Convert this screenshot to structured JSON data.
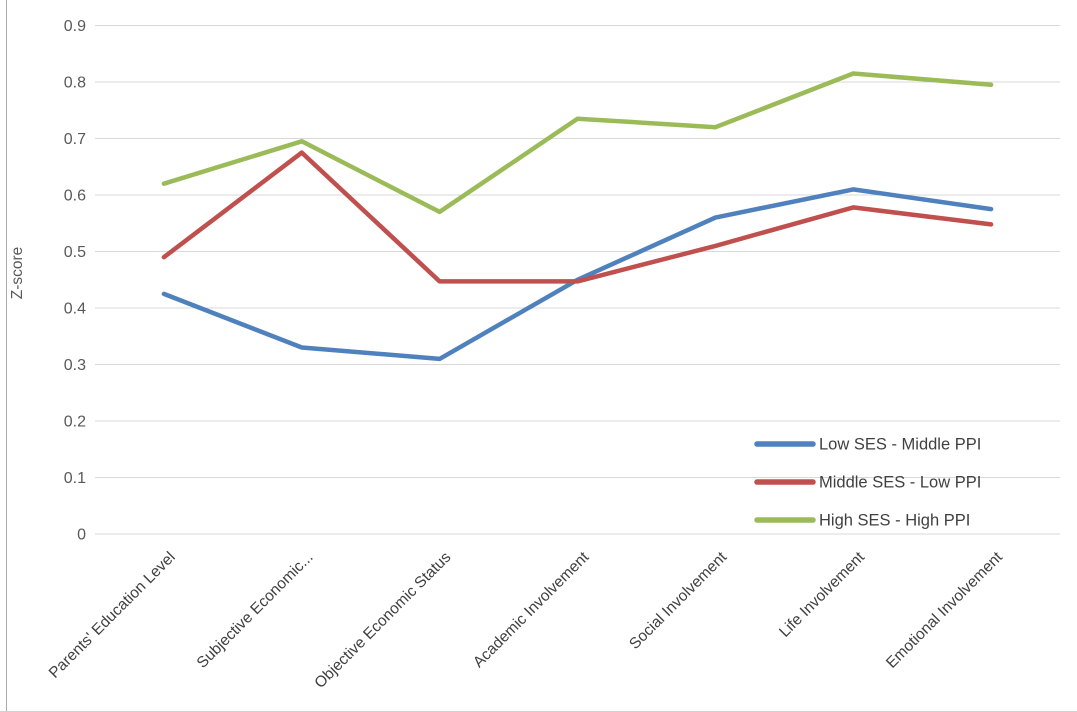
{
  "chart_data": {
    "type": "line",
    "title": "",
    "xlabel": "",
    "ylabel": "Z-score",
    "ylim": [
      0,
      0.9
    ],
    "ytick_labels": [
      "0",
      "0.1",
      "0.2",
      "0.3",
      "0.4",
      "0.5",
      "0.6",
      "0.7",
      "0.8",
      "0.9"
    ],
    "ytick_values": [
      0,
      0.1,
      0.2,
      0.3,
      0.4,
      0.5,
      0.6,
      0.7,
      0.8,
      0.9
    ],
    "grid": true,
    "gridline_color": "#d9d9d9",
    "axis_text_color": "#595959",
    "label_text_color": "#404040",
    "legend_position": "inside-right-middle",
    "categories": [
      "Parents' Education Level",
      "Subjective Economic...",
      "Objective Economic Status",
      "Academic Involvement",
      "Social Involvement",
      "Life Involvement",
      "Emotional Involvement"
    ],
    "series": [
      {
        "name": "Low SES - Middle PPI",
        "color": "#4F81BD",
        "values": [
          0.425,
          0.33,
          0.31,
          0.45,
          0.56,
          0.61,
          0.575
        ]
      },
      {
        "name": "Middle SES - Low PPI",
        "color": "#C0504D",
        "values": [
          0.49,
          0.675,
          0.447,
          0.447,
          0.51,
          0.578,
          0.548
        ]
      },
      {
        "name": "High SES - High PPI",
        "color": "#9BBB59",
        "values": [
          0.62,
          0.695,
          0.57,
          0.735,
          0.72,
          0.815,
          0.795
        ]
      }
    ]
  }
}
